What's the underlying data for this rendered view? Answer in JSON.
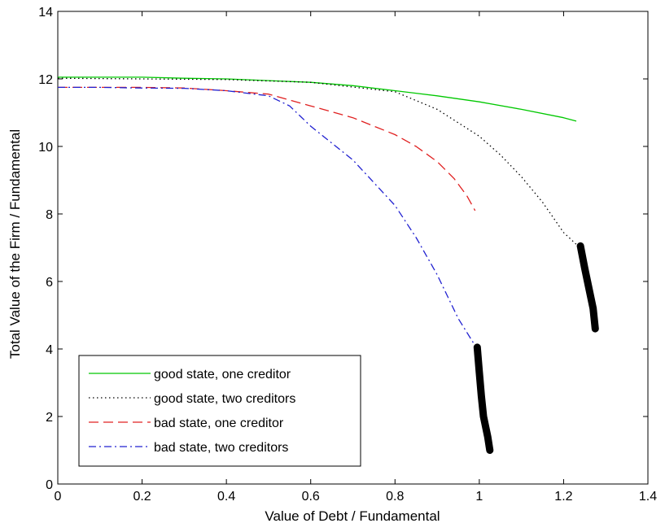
{
  "chart_data": {
    "type": "line",
    "title": "",
    "xlabel": "Value of Debt / Fundamental",
    "ylabel": "Total Value of the Firm / Fundamental",
    "xlim": [
      0,
      1.4
    ],
    "ylim": [
      0,
      14
    ],
    "xticks": [
      0,
      0.2,
      0.4,
      0.6,
      0.8,
      1,
      1.2,
      1.4
    ],
    "yticks": [
      0,
      2,
      4,
      6,
      8,
      10,
      12,
      14
    ],
    "xtick_labels": [
      "0",
      "0.2",
      "0.4",
      "0.6",
      "0.8",
      "1",
      "1.2",
      "1.4"
    ],
    "ytick_labels": [
      "0",
      "2",
      "4",
      "6",
      "8",
      "10",
      "12",
      "14"
    ],
    "grid": false,
    "legend_position": "bottom-left",
    "series": [
      {
        "name": "good state, one creditor",
        "color": "#00c800",
        "style": "solid",
        "x": [
          0,
          0.1,
          0.2,
          0.3,
          0.4,
          0.5,
          0.6,
          0.7,
          0.8,
          0.9,
          1.0,
          1.1,
          1.2,
          1.23
        ],
        "y": [
          12.05,
          12.05,
          12.05,
          12.02,
          12.0,
          11.95,
          11.9,
          11.8,
          11.65,
          11.5,
          11.32,
          11.1,
          10.85,
          10.75
        ]
      },
      {
        "name": "good state, two creditors",
        "color": "#000000",
        "style": "dotted",
        "x": [
          0,
          0.2,
          0.4,
          0.6,
          0.8,
          0.9,
          1.0,
          1.05,
          1.1,
          1.15,
          1.2,
          1.23
        ],
        "y": [
          12.02,
          12.0,
          11.98,
          11.9,
          11.62,
          11.1,
          10.3,
          9.75,
          9.1,
          8.35,
          7.45,
          7.1
        ],
        "thick_segment": {
          "x": [
            1.24,
            1.25,
            1.26,
            1.27,
            1.275
          ],
          "y": [
            7.05,
            6.4,
            5.8,
            5.2,
            4.6
          ]
        }
      },
      {
        "name": "bad state, one creditor",
        "color": "#e02020",
        "style": "dashed",
        "x": [
          0,
          0.1,
          0.2,
          0.3,
          0.4,
          0.5,
          0.6,
          0.7,
          0.8,
          0.85,
          0.9,
          0.94,
          0.97,
          0.99
        ],
        "y": [
          11.75,
          11.75,
          11.75,
          11.73,
          11.65,
          11.55,
          11.2,
          10.85,
          10.35,
          10.0,
          9.55,
          9.05,
          8.55,
          8.1
        ]
      },
      {
        "name": "bad state, two creditors",
        "color": "#2020d0",
        "style": "dashdot",
        "x": [
          0,
          0.1,
          0.2,
          0.3,
          0.4,
          0.5,
          0.55,
          0.6,
          0.7,
          0.8,
          0.85,
          0.9,
          0.95,
          0.99
        ],
        "y": [
          11.75,
          11.75,
          11.73,
          11.72,
          11.65,
          11.5,
          11.2,
          10.6,
          9.6,
          8.25,
          7.3,
          6.2,
          4.9,
          4.1
        ],
        "thick_segment": {
          "x": [
            0.995,
            1.0,
            1.005,
            1.01,
            1.02,
            1.025
          ],
          "y": [
            4.05,
            3.3,
            2.6,
            2.0,
            1.4,
            1.0
          ]
        }
      }
    ]
  }
}
